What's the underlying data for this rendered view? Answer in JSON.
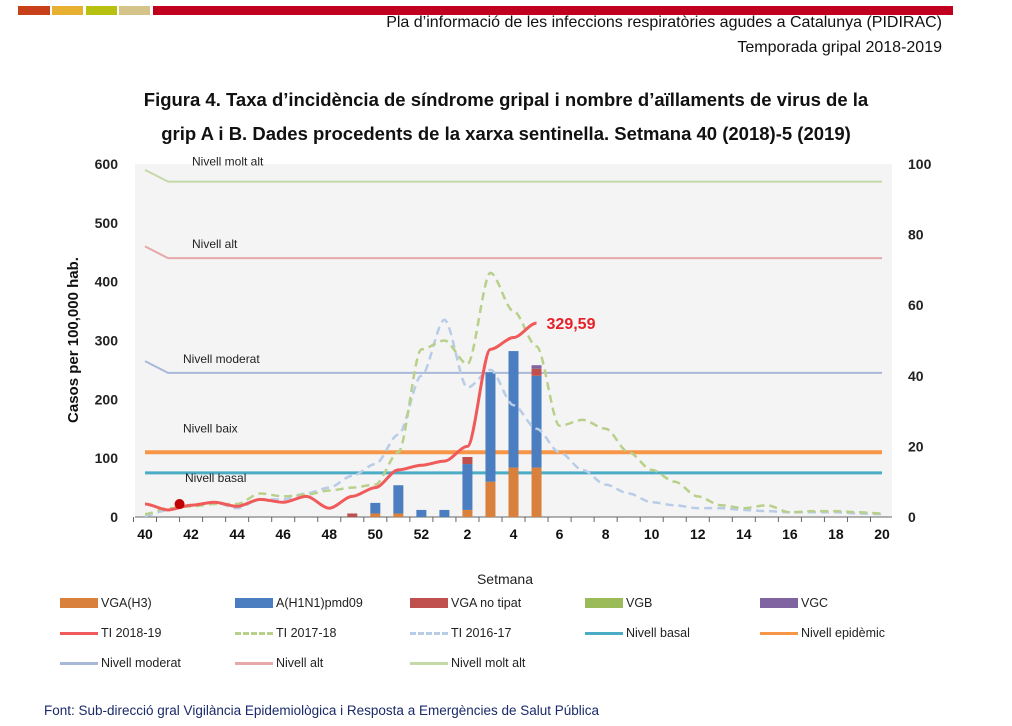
{
  "header": {
    "line1": "Pla d’informació de les infeccions respiratòries agudes a Catalunya (PIDIRAC)",
    "line2": "Temporada gripal 2018-2019",
    "bar_colors": [
      "#c8401a",
      "#e8b030",
      "#b8c010",
      "#d4c48a",
      "#c0001e"
    ]
  },
  "figure": {
    "title1": "Figura 4. Taxa d’incidència de síndrome gripal i nombre d’aïllaments de virus de la",
    "title2": "grip A i B. Dades procedents de la xarxa sentinella.  Setmana 40 (2018)-5 (2019)"
  },
  "footer": {
    "source": "Font:  Sub-direcció gral Vigilància  Epidemiològica  i Resposta a Emergències de Salut Pública"
  },
  "chart_data": {
    "type": "bar+line",
    "xlabel": "Setmana",
    "ylabel": "Casos per 100,000 hab.",
    "ylim": [
      0,
      600
    ],
    "y2lim": [
      0,
      100
    ],
    "yticks": [
      0,
      100,
      200,
      300,
      400,
      500,
      600
    ],
    "y2ticks": [
      0,
      20,
      40,
      60,
      80,
      100
    ],
    "categories": [
      "40",
      "41",
      "42",
      "43",
      "44",
      "45",
      "46",
      "47",
      "48",
      "49",
      "50",
      "51",
      "52",
      "1",
      "2",
      "3",
      "4",
      "5",
      "6",
      "7",
      "8",
      "9",
      "10",
      "11",
      "12",
      "13",
      "14",
      "15",
      "16",
      "17",
      "18",
      "19",
      "20"
    ],
    "xtick_labels": [
      "40",
      "42",
      "44",
      "46",
      "48",
      "50",
      "52",
      "2",
      "4",
      "6",
      "8",
      "10",
      "12",
      "14",
      "16",
      "18",
      "20"
    ],
    "bar_series": [
      {
        "name": "VGA(H3)",
        "color": "#d9813c",
        "values": [
          0,
          0,
          0,
          0,
          0,
          0,
          0,
          0,
          0,
          0,
          1,
          1,
          0,
          0,
          2,
          10,
          14,
          14
        ]
      },
      {
        "name": "A(H1N1)pmd09",
        "color": "#4a7ec0",
        "values": [
          0,
          0,
          0,
          0,
          0,
          0,
          0,
          0,
          0,
          0,
          3,
          8,
          2,
          2,
          13,
          31,
          33,
          26
        ]
      },
      {
        "name": "VGA no tipat",
        "color": "#c0504d",
        "values": [
          0,
          0,
          0,
          0,
          0,
          0,
          0,
          0,
          0,
          1,
          0,
          0,
          0,
          0,
          2,
          0,
          0,
          2
        ]
      },
      {
        "name": "VGB",
        "color": "#9bbb59",
        "values": [
          0,
          0,
          0,
          0,
          0,
          0,
          0,
          0,
          0,
          0,
          0,
          0,
          0,
          0,
          0,
          0,
          0,
          0
        ]
      },
      {
        "name": "VGC",
        "color": "#8064a2",
        "values": [
          0,
          0,
          0,
          0,
          0,
          0,
          0,
          0,
          0,
          0,
          0,
          0,
          0,
          0,
          0,
          0,
          0,
          1
        ]
      }
    ],
    "line_series": [
      {
        "name": "TI 2018-19",
        "color": "#f05a5a",
        "dash": false,
        "values": [
          22,
          12,
          20,
          25,
          18,
          30,
          25,
          35,
          15,
          35,
          50,
          80,
          88,
          95,
          120,
          285,
          305,
          329.59
        ]
      },
      {
        "name": "TI 2017-18",
        "color": "#b8d08a",
        "dash": true,
        "values": [
          5,
          15,
          18,
          22,
          22,
          40,
          35,
          38,
          45,
          50,
          55,
          110,
          285,
          300,
          260,
          415,
          350,
          290,
          155,
          165,
          150,
          110,
          80,
          60,
          35,
          20,
          15,
          20,
          8,
          10,
          10,
          8,
          6
        ]
      },
      {
        "name": "TI 2016-17",
        "color": "#b8cce8",
        "dash": true,
        "values": [
          2,
          12,
          20,
          25,
          15,
          30,
          30,
          40,
          50,
          70,
          90,
          140,
          240,
          335,
          220,
          250,
          190,
          150,
          110,
          80,
          55,
          40,
          25,
          20,
          15,
          15,
          12,
          10,
          8,
          8,
          8,
          6,
          5
        ]
      }
    ],
    "levels": [
      {
        "name": "Nivell basal",
        "label": "Nivell basal",
        "color": "#4bacc6",
        "start": 75,
        "value": 75
      },
      {
        "name": "Nivell epidèmic",
        "label": "",
        "color": "#f79646",
        "start": 110,
        "value": 110
      },
      {
        "name": "Nivell moderat",
        "label": "Nivell moderat",
        "color": "#a8b8d8",
        "start": 265,
        "value": 245
      },
      {
        "name": "Nivell alt",
        "label": "Nivell alt",
        "color": "#e6a8a8",
        "start": 460,
        "value": 440
      },
      {
        "name": "Nivell molt alt",
        "label": "Nivell molt alt",
        "color": "#c4d8a8",
        "start": 590,
        "value": 570
      }
    ],
    "extra_label_epidemic": "Nivell baix",
    "annotation": {
      "text": "329,59",
      "color": "#e8202a",
      "week_index": 17
    },
    "legend_placement": "bottom"
  }
}
